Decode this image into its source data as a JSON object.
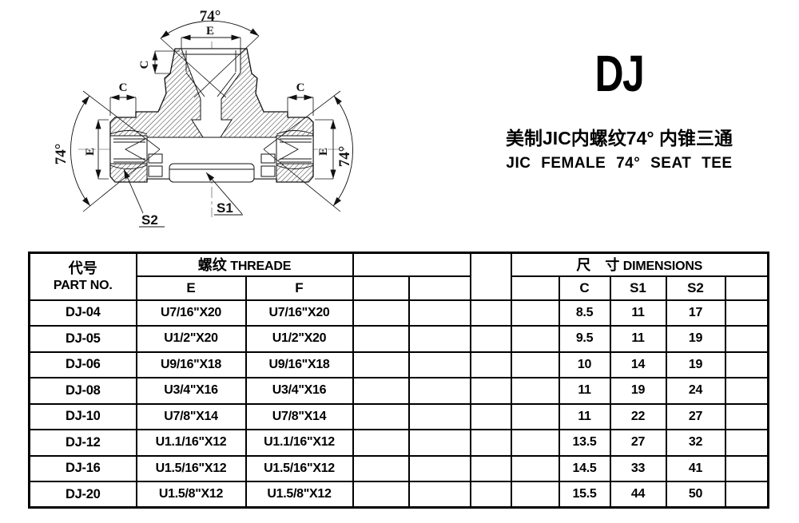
{
  "title": {
    "code": "DJ",
    "cn": "美制JIC内螺纹74° 内锥三通",
    "en": "JIC FEMALE 74° SEAT TEE"
  },
  "drawing": {
    "angle_label": "74°",
    "dim_e": "E",
    "dim_c": "C",
    "s1": "S1",
    "s2": "S2"
  },
  "table": {
    "header": {
      "part_cn": "代号",
      "part_en": "PART NO.",
      "thread_cn": "螺纹",
      "thread_en": "THREADE",
      "dim_cn": "尺　寸",
      "dim_en": "DIMENSIONS",
      "col_e": "E",
      "col_f": "F",
      "col_c": "C",
      "col_s1": "S1",
      "col_s2": "S2"
    },
    "rows": [
      {
        "part": "DJ-04",
        "e": "U7/16\"X20",
        "f": "U7/16\"X20",
        "c": "8.5",
        "s1": "11",
        "s2": "17"
      },
      {
        "part": "DJ-05",
        "e": "U1/2\"X20",
        "f": "U1/2\"X20",
        "c": "9.5",
        "s1": "11",
        "s2": "19"
      },
      {
        "part": "DJ-06",
        "e": "U9/16\"X18",
        "f": "U9/16\"X18",
        "c": "10",
        "s1": "14",
        "s2": "19"
      },
      {
        "part": "DJ-08",
        "e": "U3/4\"X16",
        "f": "U3/4\"X16",
        "c": "11",
        "s1": "19",
        "s2": "24"
      },
      {
        "part": "DJ-10",
        "e": "U7/8\"X14",
        "f": "U7/8\"X14",
        "c": "11",
        "s1": "22",
        "s2": "27"
      },
      {
        "part": "DJ-12",
        "e": "U1.1/16\"X12",
        "f": "U1.1/16\"X12",
        "c": "13.5",
        "s1": "27",
        "s2": "32"
      },
      {
        "part": "DJ-16",
        "e": "U1.5/16\"X12",
        "f": "U1.5/16\"X12",
        "c": "14.5",
        "s1": "33",
        "s2": "41"
      },
      {
        "part": "DJ-20",
        "e": "U1.5/8\"X12",
        "f": "U1.5/8\"X12",
        "c": "15.5",
        "s1": "44",
        "s2": "50"
      }
    ]
  }
}
